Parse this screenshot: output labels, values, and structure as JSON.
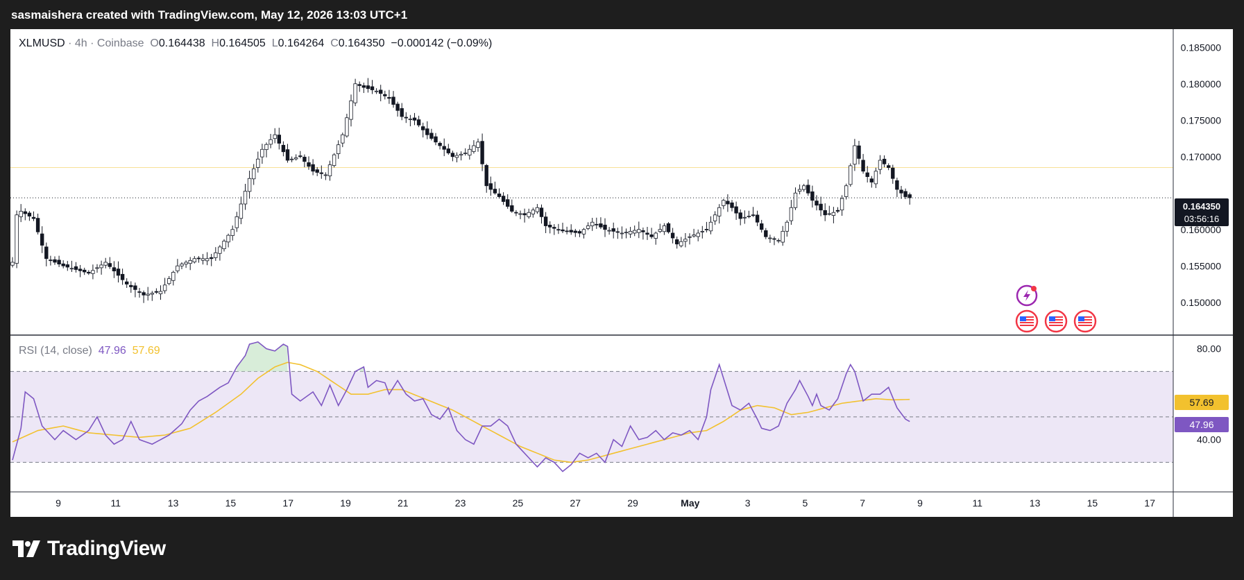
{
  "header": {
    "title": "sasmaishera created with TradingView.com, May 12, 2026 13:03 UTC+1"
  },
  "legend": {
    "symbol": "XLMUSD",
    "separator": " · ",
    "interval": "4h",
    "exchange": "Coinbase",
    "open_label": "O",
    "open": "0.164438",
    "high_label": "H",
    "high": "0.164505",
    "low_label": "L",
    "low": "0.164264",
    "close_label": "C",
    "close": "0.164350",
    "change": "−0.000142 (−0.09%)"
  },
  "rsi_legend": {
    "label": "RSI (14, close)",
    "rsi_value": "47.96",
    "ma_value": "57.69"
  },
  "price_badge": {
    "price": "0.164350",
    "countdown": "03:56:16"
  },
  "rsi_badges": {
    "ma": "57.69",
    "rsi": "47.96"
  },
  "footer": {
    "logo_text": "TradingView"
  },
  "colors": {
    "up_candle": "#ffffff",
    "down_candle": "#131722",
    "rsi_line": "#7e57c2",
    "rsi_ma_line": "#f2c12e",
    "rsi_band": "#ede7f6",
    "price_line": "#f2c12e"
  },
  "icons": [
    "lightning-event-icon",
    "us-flag-event-icon"
  ],
  "chart_data": [
    {
      "type": "candlestick",
      "title": "XLMUSD · 4h · Coinbase",
      "y_ticks": [
        "0.185000",
        "0.180000",
        "0.175000",
        "0.170000",
        "0.160000",
        "0.155000",
        "0.150000"
      ],
      "x_ticks": [
        "9",
        "11",
        "13",
        "15",
        "17",
        "19",
        "21",
        "23",
        "25",
        "27",
        "29",
        "May",
        "3",
        "5",
        "7",
        "9",
        "11",
        "13",
        "15",
        "17"
      ],
      "ylim": [
        0.1455,
        0.1875
      ],
      "last_price": 0.16435,
      "anchors": [
        [
          0,
          0.1555
        ],
        [
          1,
          0.162
        ],
        [
          2,
          0.1625
        ],
        [
          5,
          0.1615
        ],
        [
          8,
          0.156
        ],
        [
          12,
          0.155
        ],
        [
          18,
          0.154
        ],
        [
          22,
          0.1555
        ],
        [
          27,
          0.1525
        ],
        [
          31,
          0.151
        ],
        [
          35,
          0.1515
        ],
        [
          39,
          0.155
        ],
        [
          43,
          0.156
        ],
        [
          47,
          0.156
        ],
        [
          52,
          0.16
        ],
        [
          56,
          0.167
        ],
        [
          59,
          0.171
        ],
        [
          62,
          0.173
        ],
        [
          65,
          0.1695
        ],
        [
          68,
          0.17
        ],
        [
          71,
          0.168
        ],
        [
          74,
          0.1675
        ],
        [
          78,
          0.173
        ],
        [
          81,
          0.18
        ],
        [
          83,
          0.1795
        ],
        [
          86,
          0.179
        ],
        [
          89,
          0.178
        ],
        [
          92,
          0.1755
        ],
        [
          95,
          0.175
        ],
        [
          98,
          0.173
        ],
        [
          101,
          0.1715
        ],
        [
          104,
          0.17
        ],
        [
          107,
          0.1705
        ],
        [
          110,
          0.172
        ],
        [
          112,
          0.166
        ],
        [
          115,
          0.1645
        ],
        [
          118,
          0.1625
        ],
        [
          121,
          0.162
        ],
        [
          124,
          0.163
        ],
        [
          126,
          0.1605
        ],
        [
          130,
          0.1598
        ],
        [
          134,
          0.1595
        ],
        [
          137,
          0.161
        ],
        [
          140,
          0.16
        ],
        [
          144,
          0.1595
        ],
        [
          148,
          0.16
        ],
        [
          151,
          0.159
        ],
        [
          154,
          0.1605
        ],
        [
          157,
          0.158
        ],
        [
          160,
          0.159
        ],
        [
          164,
          0.16
        ],
        [
          166,
          0.162
        ],
        [
          168,
          0.164
        ],
        [
          170,
          0.163
        ],
        [
          172,
          0.1615
        ],
        [
          175,
          0.162
        ],
        [
          178,
          0.159
        ],
        [
          181,
          0.1585
        ],
        [
          183,
          0.161
        ],
        [
          185,
          0.165
        ],
        [
          187,
          0.166
        ],
        [
          189,
          0.164
        ],
        [
          192,
          0.162
        ],
        [
          195,
          0.1625
        ],
        [
          197,
          0.166
        ],
        [
          199,
          0.1715
        ],
        [
          201,
          0.168
        ],
        [
          203,
          0.1665
        ],
        [
          205,
          0.1695
        ],
        [
          207,
          0.1685
        ],
        [
          209,
          0.1655
        ],
        [
          211,
          0.1645
        ],
        [
          212,
          0.16435
        ]
      ]
    },
    {
      "type": "line",
      "title": "RSI (14, close)",
      "y_ticks": [
        "80.00",
        "40.00"
      ],
      "band": [
        30,
        70
      ],
      "mid": 50,
      "ylim": [
        17,
        86
      ],
      "series": [
        {
          "name": "RSI",
          "anchors": [
            [
              0,
              31
            ],
            [
              2,
              45
            ],
            [
              3,
              61
            ],
            [
              5,
              58
            ],
            [
              7,
              46
            ],
            [
              10,
              40
            ],
            [
              12,
              44
            ],
            [
              15,
              40
            ],
            [
              18,
              44
            ],
            [
              20,
              50
            ],
            [
              22,
              42
            ],
            [
              24,
              38
            ],
            [
              26,
              40
            ],
            [
              28,
              48
            ],
            [
              30,
              40
            ],
            [
              33,
              38
            ],
            [
              35,
              40
            ],
            [
              37,
              42
            ],
            [
              40,
              47
            ],
            [
              42,
              53
            ],
            [
              44,
              57
            ],
            [
              46,
              59
            ],
            [
              49,
              63
            ],
            [
              51,
              65
            ],
            [
              53,
              72
            ],
            [
              55,
              77
            ],
            [
              56,
              82
            ],
            [
              58,
              83
            ],
            [
              60,
              80
            ],
            [
              62,
              79
            ],
            [
              64,
              82
            ],
            [
              65,
              81
            ],
            [
              66,
              60
            ],
            [
              68,
              57
            ],
            [
              71,
              61
            ],
            [
              73,
              55
            ],
            [
              75,
              64
            ],
            [
              77,
              55
            ],
            [
              79,
              62
            ],
            [
              81,
              70
            ],
            [
              83,
              72
            ],
            [
              84,
              63
            ],
            [
              86,
              66
            ],
            [
              88,
              65
            ],
            [
              89,
              60
            ],
            [
              91,
              66
            ],
            [
              93,
              60
            ],
            [
              95,
              57
            ],
            [
              97,
              58
            ],
            [
              99,
              51
            ],
            [
              101,
              49
            ],
            [
              103,
              54
            ],
            [
              105,
              44
            ],
            [
              107,
              40
            ],
            [
              109,
              38
            ],
            [
              111,
              46
            ],
            [
              113,
              46
            ],
            [
              115,
              49
            ],
            [
              117,
              46
            ],
            [
              119,
              38
            ],
            [
              121,
              34
            ],
            [
              123,
              30
            ],
            [
              124,
              28
            ],
            [
              126,
              32
            ],
            [
              128,
              30
            ],
            [
              130,
              26
            ],
            [
              132,
              29
            ],
            [
              134,
              34
            ],
            [
              136,
              32
            ],
            [
              138,
              34
            ],
            [
              140,
              30
            ],
            [
              142,
              40
            ],
            [
              144,
              37
            ],
            [
              146,
              46
            ],
            [
              148,
              40
            ],
            [
              150,
              41
            ],
            [
              152,
              44
            ],
            [
              154,
              40
            ],
            [
              156,
              43
            ],
            [
              158,
              42
            ],
            [
              160,
              44
            ],
            [
              162,
              40
            ],
            [
              164,
              50
            ],
            [
              165,
              62
            ],
            [
              167,
              73
            ],
            [
              168,
              67
            ],
            [
              170,
              55
            ],
            [
              172,
              53
            ],
            [
              174,
              56
            ],
            [
              176,
              49
            ],
            [
              177,
              45
            ],
            [
              179,
              44
            ],
            [
              181,
              46
            ],
            [
              183,
              56
            ],
            [
              185,
              62
            ],
            [
              186,
              66
            ],
            [
              188,
              59
            ],
            [
              189,
              55
            ],
            [
              190,
              60
            ],
            [
              191,
              55
            ],
            [
              193,
              53
            ],
            [
              195,
              58
            ],
            [
              197,
              69
            ],
            [
              198,
              73
            ],
            [
              199,
              70
            ],
            [
              201,
              57
            ],
            [
              203,
              60
            ],
            [
              205,
              60
            ],
            [
              207,
              63
            ],
            [
              209,
              54
            ],
            [
              211,
              49
            ],
            [
              212,
              47.96
            ]
          ]
        },
        {
          "name": "RSI-based MA",
          "anchors": [
            [
              0,
              39
            ],
            [
              6,
              44
            ],
            [
              12,
              46
            ],
            [
              18,
              43
            ],
            [
              24,
              42
            ],
            [
              30,
              41
            ],
            [
              36,
              42
            ],
            [
              42,
              45
            ],
            [
              48,
              52
            ],
            [
              54,
              60
            ],
            [
              58,
              67
            ],
            [
              62,
              72
            ],
            [
              65,
              74
            ],
            [
              68,
              73
            ],
            [
              72,
              70
            ],
            [
              76,
              65
            ],
            [
              80,
              60
            ],
            [
              84,
              60
            ],
            [
              88,
              62
            ],
            [
              92,
              62
            ],
            [
              96,
              59
            ],
            [
              100,
              56
            ],
            [
              104,
              53
            ],
            [
              108,
              49
            ],
            [
              112,
              45
            ],
            [
              116,
              41
            ],
            [
              120,
              37
            ],
            [
              124,
              34
            ],
            [
              128,
              31
            ],
            [
              132,
              30
            ],
            [
              136,
              31
            ],
            [
              140,
              33
            ],
            [
              144,
              35
            ],
            [
              148,
              37
            ],
            [
              152,
              39
            ],
            [
              156,
              41
            ],
            [
              160,
              43
            ],
            [
              164,
              44
            ],
            [
              168,
              48
            ],
            [
              172,
              53
            ],
            [
              176,
              55
            ],
            [
              180,
              54
            ],
            [
              184,
              51
            ],
            [
              188,
              52
            ],
            [
              192,
              54
            ],
            [
              196,
              56
            ],
            [
              200,
              57
            ],
            [
              204,
              58
            ],
            [
              208,
              57.5
            ],
            [
              212,
              57.69
            ]
          ]
        }
      ]
    }
  ]
}
